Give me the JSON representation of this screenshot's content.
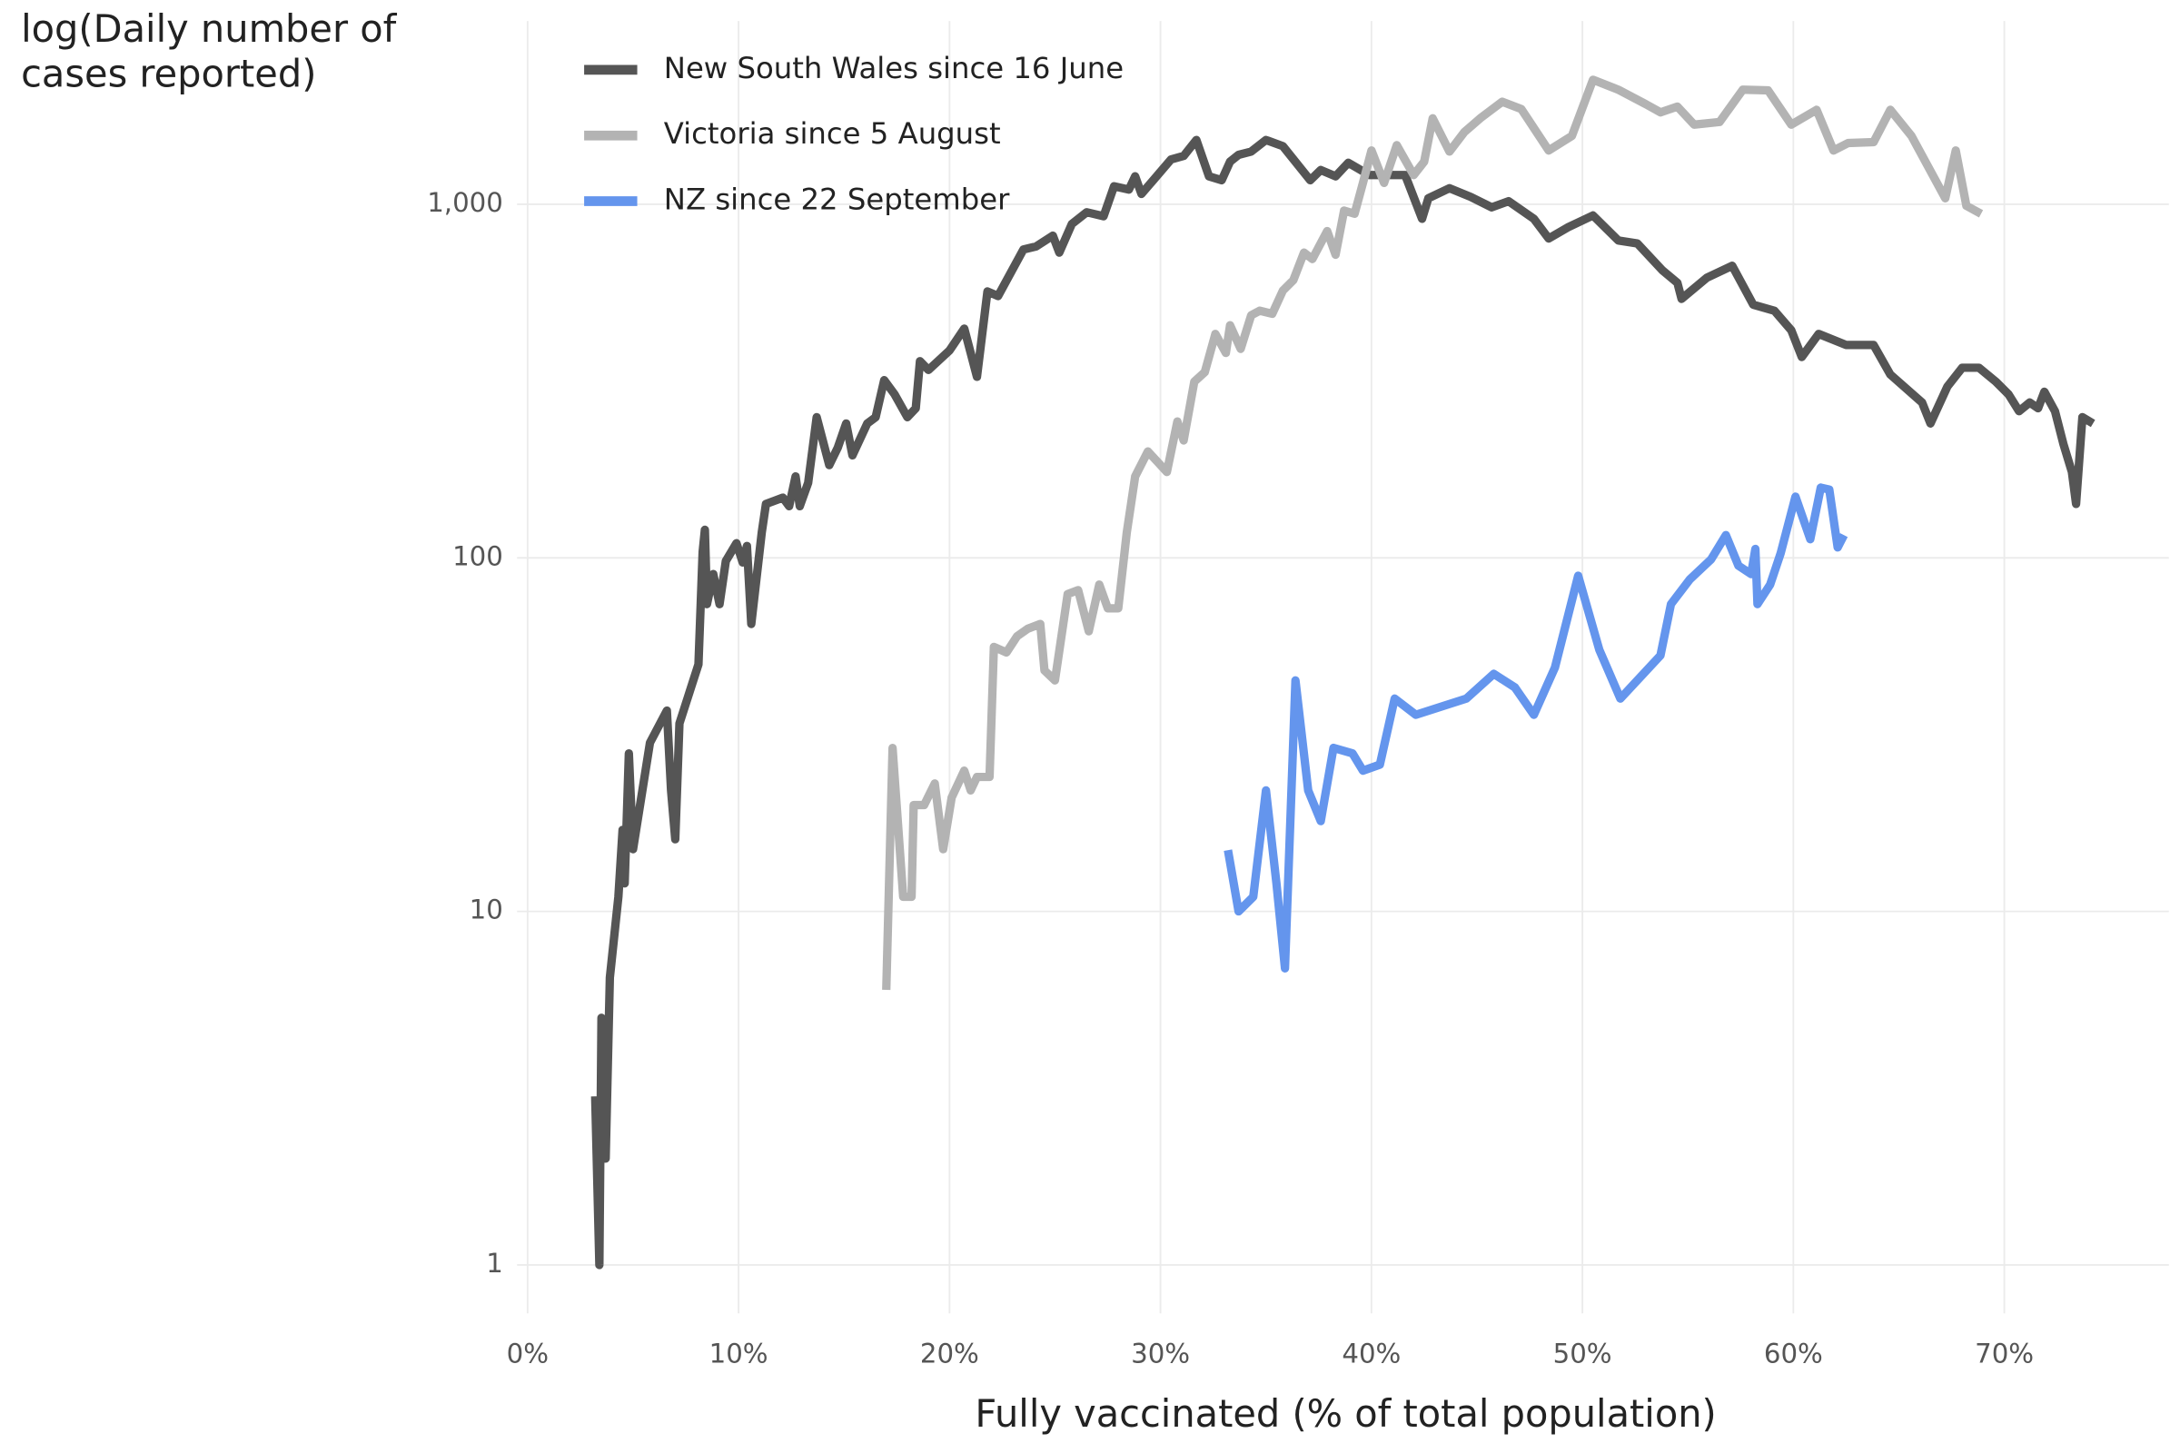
{
  "chart_data": {
    "type": "line",
    "y_label": "log(Daily number of cases reported)",
    "x_label": "Fully vaccinated (% of total population)",
    "log_y": true,
    "grid": true,
    "legend": "top-left",
    "xlim": [
      -0.5,
      77.8
    ],
    "ylim": [
      0.73,
      3300
    ],
    "xticks": [
      {
        "value": 0,
        "label": "0%"
      },
      {
        "value": 10,
        "label": "10%"
      },
      {
        "value": 20,
        "label": "20%"
      },
      {
        "value": 30,
        "label": "30%"
      },
      {
        "value": 40,
        "label": "40%"
      },
      {
        "value": 50,
        "label": "50%"
      },
      {
        "value": 60,
        "label": "60%"
      },
      {
        "value": 70,
        "label": "70%"
      }
    ],
    "yticks": [
      1,
      10,
      100,
      {
        "value": 1000,
        "label": "1,000"
      }
    ],
    "series": [
      {
        "name": "New South Wales since 16 June",
        "color": "#555555",
        "x": [
          3.2,
          3.4,
          3.5,
          3.7,
          3.9,
          4.3,
          4.5,
          4.6,
          4.8,
          5.0,
          5.8,
          6.6,
          6.8,
          7.0,
          7.2,
          7.8,
          8.1,
          8.3,
          8.4,
          8.5,
          8.8,
          9.1,
          9.4,
          9.9,
          10.2,
          10.4,
          10.6,
          11.1,
          11.3,
          11.7,
          12.1,
          12.4,
          12.7,
          12.9,
          13.3,
          13.7,
          14.3,
          14.7,
          15.1,
          15.4,
          16.1,
          16.5,
          16.9,
          17.4,
          18.0,
          18.4,
          18.6,
          19.0,
          20.0,
          20.7,
          21.3,
          21.8,
          22.3,
          23.5,
          24.1,
          24.9,
          25.2,
          25.8,
          26.5,
          27.3,
          27.8,
          28.5,
          28.8,
          29.1,
          30.5,
          31.1,
          31.7,
          32.3,
          32.9,
          33.3,
          33.7,
          34.3,
          35.0,
          35.8,
          37.1,
          37.6,
          38.3,
          38.9,
          39.9,
          41.6,
          42.4,
          42.7,
          43.7,
          44.7,
          45.7,
          46.5,
          47.7,
          48.4,
          49.3,
          50.5,
          51.7,
          52.6,
          53.8,
          54.5,
          54.7,
          55.9,
          57.1,
          58.1,
          59.1,
          59.9,
          60.4,
          61.2,
          62.5,
          63.8,
          64.6,
          66.1,
          66.5,
          67.3,
          68.0,
          68.8,
          69.6,
          70.2,
          70.7,
          71.2,
          71.6,
          71.9,
          72.4,
          72.8,
          73.2,
          73.4,
          73.7,
          74.2
        ],
        "values": [
          3.0,
          1,
          5.0,
          2.0,
          6.5,
          11,
          17,
          12,
          28,
          15,
          30,
          37,
          22,
          16,
          34,
          44,
          50,
          104,
          120,
          74,
          90,
          74,
          98,
          110,
          97,
          108,
          65,
          118,
          142,
          145,
          148,
          140,
          170,
          140,
          163,
          250,
          183,
          205,
          240,
          195,
          240,
          250,
          318,
          290,
          250,
          265,
          360,
          340,
          386,
          445,
          325,
          567,
          550,
          745,
          760,
          815,
          730,
          880,
          950,
          925,
          1125,
          1100,
          1200,
          1070,
          1340,
          1370,
          1520,
          1200,
          1170,
          1320,
          1380,
          1410,
          1520,
          1460,
          1170,
          1250,
          1200,
          1310,
          1210,
          1210,
          910,
          1040,
          1110,
          1050,
          980,
          1020,
          910,
          800,
          860,
          930,
          790,
          775,
          650,
          600,
          540,
          620,
          670,
          520,
          500,
          440,
          370,
          430,
          400,
          400,
          330,
          275,
          240,
          305,
          345,
          345,
          315,
          290,
          260,
          275,
          265,
          295,
          260,
          210,
          175,
          142,
          250,
          240
        ]
      },
      {
        "name": "Victoria since 5 August",
        "color": "#b3b3b3",
        "x": [
          17.0,
          17.3,
          17.8,
          18.2,
          18.3,
          18.8,
          19.3,
          19.7,
          20.1,
          20.7,
          21.0,
          21.3,
          21.9,
          22.1,
          22.7,
          23.2,
          23.7,
          24.3,
          24.5,
          25.0,
          25.6,
          26.1,
          26.6,
          27.1,
          27.5,
          28.0,
          28.4,
          28.8,
          29.4,
          30.3,
          30.8,
          31.1,
          31.6,
          32.1,
          32.6,
          33.1,
          33.3,
          33.8,
          34.3,
          34.7,
          35.3,
          35.8,
          36.3,
          36.8,
          37.2,
          37.9,
          38.3,
          38.7,
          39.2,
          39.6,
          40.0,
          40.6,
          41.2,
          42.0,
          42.5,
          42.9,
          43.7,
          44.4,
          45.2,
          46.2,
          47.1,
          48.4,
          49.5,
          50.5,
          51.7,
          53.0,
          53.7,
          54.5,
          55.3,
          56.5,
          57.6,
          58.8,
          59.9,
          61.1,
          61.9,
          62.6,
          63.8,
          64.6,
          65.6,
          67.2,
          67.7,
          68.2,
          68.9
        ],
        "values": [
          6,
          29,
          11,
          11,
          20,
          20,
          23,
          15,
          21,
          25,
          22,
          24,
          24,
          56,
          54,
          60,
          63,
          65,
          48,
          45,
          79,
          81,
          62,
          84,
          72,
          72,
          118,
          170,
          200,
          175,
          243,
          215,
          315,
          335,
          430,
          380,
          455,
          390,
          485,
          500,
          490,
          570,
          610,
          730,
          700,
          840,
          720,
          960,
          940,
          1150,
          1420,
          1150,
          1470,
          1210,
          1320,
          1750,
          1410,
          1600,
          1760,
          1950,
          1860,
          1420,
          1560,
          2250,
          2110,
          1920,
          1820,
          1890,
          1680,
          1710,
          2110,
          2100,
          1680,
          1850,
          1420,
          1490,
          1500,
          1850,
          1560,
          1040,
          1420,
          990,
          940
        ]
      },
      {
        "name": "NZ since 22 September",
        "color": "#6495ed",
        "x": [
          33.2,
          33.7,
          34.4,
          35.0,
          35.5,
          35.9,
          36.4,
          37.0,
          37.6,
          38.2,
          39.1,
          39.6,
          40.4,
          41.1,
          42.1,
          44.5,
          45.8,
          46.8,
          47.7,
          48.7,
          49.8,
          50.8,
          51.8,
          53.7,
          54.2,
          55.1,
          56.1,
          56.8,
          57.4,
          58.0,
          58.2,
          58.3,
          58.9,
          59.4,
          60.1,
          60.8,
          61.3,
          61.7,
          62.1,
          62.4
        ],
        "values": [
          14.9,
          10,
          11,
          22,
          12,
          6.9,
          45,
          22,
          18,
          29,
          28,
          25,
          26,
          40,
          36,
          40,
          47,
          43,
          36,
          49,
          89,
          55,
          40,
          53,
          74,
          87,
          99,
          116,
          95,
          90,
          106,
          74,
          84,
          103,
          149,
          113,
          158,
          156,
          107,
          116
        ]
      }
    ]
  }
}
